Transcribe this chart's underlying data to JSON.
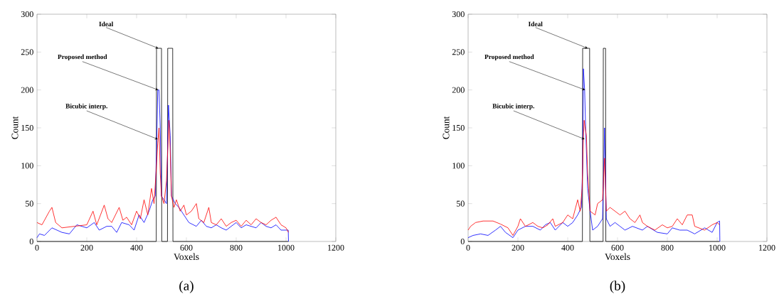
{
  "chart_data": [
    {
      "type": "line",
      "xlabel": "Voxels",
      "ylabel": "Count",
      "xlim": [
        0,
        1200
      ],
      "ylim": [
        0,
        300
      ],
      "xticks": [
        0,
        200,
        400,
        600,
        800,
        1000,
        1200
      ],
      "yticks": [
        0,
        50,
        100,
        150,
        200,
        250,
        300
      ],
      "grid": false,
      "marker": "none",
      "line_style": "solid",
      "series": [
        {
          "color": "#ff0000",
          "x": [
            0,
            20,
            50,
            60,
            75,
            100,
            150,
            200,
            225,
            240,
            270,
            285,
            300,
            330,
            345,
            360,
            380,
            400,
            415,
            430,
            445,
            460,
            470,
            478,
            485,
            490,
            495,
            500,
            510,
            520,
            530,
            535,
            540,
            550,
            560,
            575,
            590,
            600,
            620,
            640,
            650,
            670,
            690,
            700,
            720,
            740,
            760,
            780,
            800,
            820,
            840,
            860,
            880,
            900,
            920,
            940,
            960,
            980,
            1000,
            1010
          ],
          "values": [
            25,
            22,
            40,
            45,
            25,
            18,
            20,
            22,
            40,
            22,
            48,
            30,
            25,
            45,
            28,
            32,
            22,
            40,
            30,
            55,
            35,
            70,
            50,
            90,
            130,
            150,
            90,
            60,
            50,
            80,
            160,
            120,
            60,
            45,
            55,
            40,
            48,
            35,
            40,
            50,
            30,
            25,
            45,
            25,
            22,
            30,
            20,
            25,
            28,
            20,
            28,
            22,
            30,
            25,
            22,
            28,
            32,
            22,
            18,
            12
          ]
        },
        {
          "color": "#0000ff",
          "x": [
            0,
            10,
            30,
            60,
            80,
            100,
            130,
            160,
            200,
            230,
            250,
            280,
            300,
            320,
            340,
            370,
            390,
            410,
            430,
            450,
            465,
            475,
            480,
            485,
            490,
            495,
            500,
            510,
            520,
            528,
            535,
            540,
            555,
            570,
            590,
            610,
            640,
            660,
            680,
            700,
            720,
            740,
            760,
            780,
            800,
            820,
            840,
            860,
            880,
            900,
            920,
            940,
            960,
            980,
            1000,
            1009,
            1010
          ],
          "values": [
            5,
            10,
            8,
            18,
            15,
            12,
            10,
            22,
            18,
            25,
            15,
            20,
            20,
            12,
            25,
            22,
            15,
            35,
            25,
            40,
            55,
            60,
            120,
            200,
            200,
            150,
            60,
            55,
            50,
            180,
            140,
            60,
            50,
            45,
            35,
            25,
            20,
            28,
            20,
            18,
            22,
            18,
            15,
            20,
            25,
            18,
            22,
            20,
            18,
            25,
            20,
            18,
            22,
            15,
            15,
            15,
            0
          ]
        },
        {
          "color": "#000000",
          "x": [
            0,
            479,
            480,
            500,
            501,
            524,
            525,
            545,
            546,
            1010
          ],
          "values": [
            0,
            0,
            255,
            255,
            0,
            0,
            255,
            255,
            0,
            0
          ]
        }
      ],
      "annotations": [
        {
          "text": "Ideal",
          "x": 487,
          "y": 255
        },
        {
          "text": "Proposed method",
          "x": 487,
          "y": 200
        },
        {
          "text": "Bicubic interp.",
          "x": 485,
          "y": 135
        },
        "(a)"
      ]
    },
    {
      "type": "line",
      "xlabel": "Voxels",
      "ylabel": "Count",
      "xlim": [
        0,
        1200
      ],
      "ylim": [
        0,
        300
      ],
      "xticks": [
        0,
        200,
        400,
        600,
        800,
        1000,
        1200
      ],
      "yticks": [
        0,
        50,
        100,
        150,
        200,
        250,
        300
      ],
      "grid": false,
      "marker": "none",
      "line_style": "solid",
      "series": [
        {
          "color": "#ff0000",
          "x": [
            0,
            10,
            30,
            60,
            100,
            130,
            160,
            180,
            200,
            210,
            230,
            260,
            280,
            300,
            320,
            340,
            350,
            380,
            400,
            420,
            440,
            450,
            458,
            462,
            466,
            470,
            475,
            480,
            490,
            510,
            520,
            540,
            548,
            555,
            570,
            590,
            610,
            630,
            650,
            670,
            690,
            700,
            720,
            750,
            780,
            800,
            820,
            840,
            860,
            880,
            900,
            910,
            950,
            980,
            1000,
            1010
          ],
          "values": [
            15,
            20,
            25,
            27,
            27,
            23,
            18,
            8,
            20,
            30,
            20,
            25,
            20,
            18,
            22,
            30,
            20,
            25,
            35,
            30,
            55,
            40,
            70,
            130,
            160,
            150,
            140,
            90,
            40,
            35,
            50,
            55,
            110,
            40,
            45,
            40,
            35,
            40,
            30,
            25,
            35,
            25,
            20,
            15,
            22,
            18,
            20,
            30,
            22,
            35,
            35,
            20,
            15,
            22,
            25,
            22
          ]
        },
        {
          "color": "#0000ff",
          "x": [
            0,
            20,
            50,
            80,
            110,
            130,
            150,
            180,
            200,
            230,
            260,
            290,
            310,
            330,
            350,
            380,
            400,
            420,
            440,
            455,
            460,
            463,
            468,
            472,
            480,
            490,
            500,
            520,
            540,
            548,
            555,
            570,
            590,
            610,
            630,
            660,
            700,
            720,
            760,
            800,
            820,
            850,
            880,
            910,
            950,
            980,
            1000,
            1010,
            1011
          ],
          "values": [
            5,
            8,
            10,
            8,
            15,
            20,
            12,
            5,
            15,
            20,
            20,
            15,
            22,
            25,
            15,
            25,
            20,
            25,
            35,
            45,
            100,
            228,
            200,
            150,
            70,
            40,
            15,
            20,
            30,
            150,
            30,
            20,
            25,
            20,
            15,
            20,
            15,
            20,
            12,
            10,
            18,
            15,
            15,
            10,
            18,
            12,
            25,
            27,
            0
          ]
        },
        {
          "color": "#000000",
          "x": [
            0,
            459,
            460,
            488,
            489,
            542,
            543,
            552,
            553,
            1010
          ],
          "values": [
            0,
            0,
            255,
            255,
            0,
            0,
            255,
            255,
            0,
            0
          ]
        }
      ],
      "annotations": [
        {
          "text": "Ideal",
          "x": 480,
          "y": 255
        },
        {
          "text": "Proposed method",
          "x": 470,
          "y": 200
        },
        {
          "text": "Bicubic interp.",
          "x": 468,
          "y": 135
        },
        "(b)"
      ]
    }
  ]
}
